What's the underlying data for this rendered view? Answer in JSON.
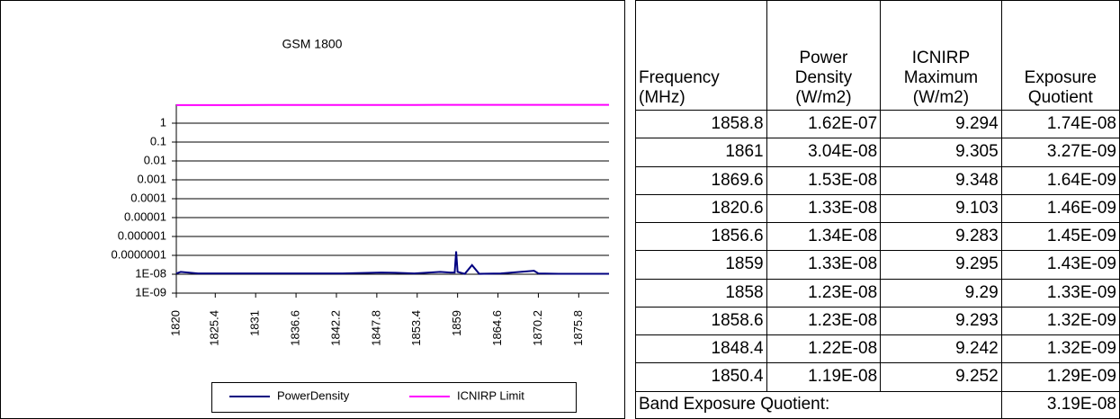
{
  "chart_data": {
    "type": "line",
    "title": "GSM 1800",
    "log_y": true,
    "grid": true,
    "x": [
      1820,
      1820.6,
      1823,
      1828,
      1833,
      1838,
      1843,
      1848.4,
      1850.4,
      1853,
      1856.6,
      1858,
      1858.6,
      1858.8,
      1859,
      1860,
      1861,
      1862,
      1865,
      1869.6,
      1870.2,
      1873,
      1877,
      1880
    ],
    "series": [
      {
        "name": "PowerDensity",
        "color": "#000080",
        "values": [
          1.1e-08,
          1.33e-08,
          1.1e-08,
          1.1e-08,
          1.1e-08,
          1.1e-08,
          1.1e-08,
          1.22e-08,
          1.19e-08,
          1.1e-08,
          1.34e-08,
          1.23e-08,
          1.23e-08,
          1.62e-07,
          1.33e-08,
          1.05e-08,
          3.04e-08,
          1.05e-08,
          1.1e-08,
          1.53e-08,
          1.1e-08,
          1.05e-08,
          1.05e-08,
          1.05e-08
        ]
      },
      {
        "name": "ICNIRP Limit",
        "color": "#ff00ff",
        "values": [
          9.1,
          9.103,
          9.115,
          9.14,
          9.165,
          9.19,
          9.215,
          9.242,
          9.252,
          9.265,
          9.283,
          9.29,
          9.293,
          9.294,
          9.295,
          9.3,
          9.305,
          9.31,
          9.325,
          9.348,
          9.351,
          9.365,
          9.385,
          9.4
        ]
      }
    ],
    "xlim": [
      1820,
      1880
    ],
    "xticks": [
      1820,
      1825.4,
      1831,
      1836.6,
      1842.2,
      1847.8,
      1853.4,
      1859,
      1864.6,
      1870.2,
      1875.8
    ],
    "ylim": [
      1e-09,
      10
    ],
    "yticks": [
      1,
      0.1,
      0.01,
      0.001,
      0.0001,
      1e-05,
      1e-06,
      {
        "value": 1e-07,
        "label": "0.0000001"
      },
      {
        "value": 1e-08,
        "label": "1E-08"
      },
      {
        "value": 1e-09,
        "label": "1E-09"
      }
    ]
  },
  "table": {
    "header": [
      [
        "Frequency",
        "(MHz)"
      ],
      [
        "Power",
        "Density",
        "(W/m2)"
      ],
      [
        "ICNIRP",
        "Maximum",
        "(W/m2)"
      ],
      [
        "Exposure",
        "Quotient"
      ]
    ],
    "rows": [
      [
        "1858.8",
        "1.62E-07",
        "9.294",
        "1.74E-08"
      ],
      [
        "1861",
        "3.04E-08",
        "9.305",
        "3.27E-09"
      ],
      [
        "1869.6",
        "1.53E-08",
        "9.348",
        "1.64E-09"
      ],
      [
        "1820.6",
        "1.33E-08",
        "9.103",
        "1.46E-09"
      ],
      [
        "1856.6",
        "1.34E-08",
        "9.283",
        "1.45E-09"
      ],
      [
        "1859",
        "1.33E-08",
        "9.295",
        "1.43E-09"
      ],
      [
        "1858",
        "1.23E-08",
        "9.29",
        "1.33E-09"
      ],
      [
        "1858.6",
        "1.23E-08",
        "9.293",
        "1.32E-09"
      ],
      [
        "1848.4",
        "1.22E-08",
        "9.242",
        "1.32E-09"
      ],
      [
        "1850.4",
        "1.19E-08",
        "9.252",
        "1.29E-09"
      ]
    ],
    "footer": {
      "label": "Band Exposure Quotient:",
      "value": "3.19E-08"
    }
  }
}
